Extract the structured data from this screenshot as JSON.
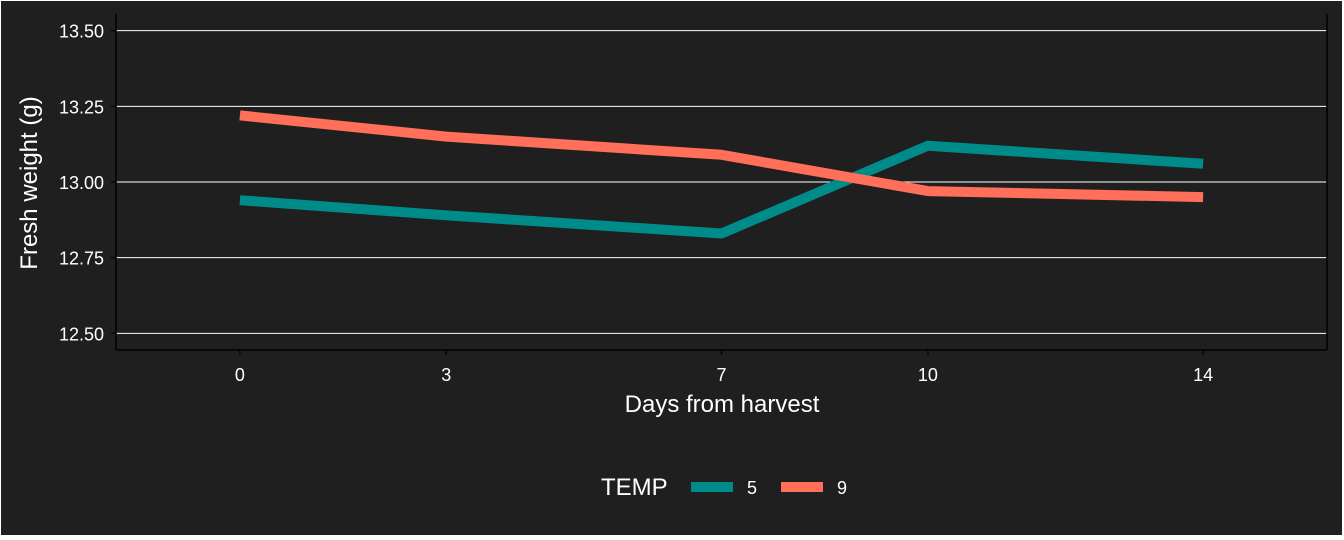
{
  "chart_data": {
    "type": "line",
    "title": "",
    "xlabel": "Days from harvest",
    "ylabel": "Fresh weight (g)",
    "x": [
      0,
      3,
      7,
      10,
      14
    ],
    "x_tick_labels": [
      "0",
      "3",
      "7",
      "10",
      "14"
    ],
    "xlim": [
      -1.8,
      15.8
    ],
    "ylim": [
      12.445,
      13.555
    ],
    "y_ticks": [
      12.5,
      12.75,
      13.0,
      13.25,
      13.5
    ],
    "y_tick_labels": [
      "12.50",
      "12.75",
      "13.00",
      "13.25",
      "13.50"
    ],
    "grid": true,
    "legend": {
      "title": "TEMP",
      "position": "bottom"
    },
    "series": [
      {
        "name": "5",
        "color": "#008b8b",
        "values": [
          12.94,
          12.89,
          12.83,
          13.12,
          13.06
        ]
      },
      {
        "name": "9",
        "color": "#ff6f59",
        "values": [
          13.22,
          13.15,
          13.09,
          12.97,
          12.95
        ]
      }
    ],
    "colors": {
      "background": "#1f1f1f",
      "grid": "#ffffff",
      "text": "#ffffff"
    }
  }
}
